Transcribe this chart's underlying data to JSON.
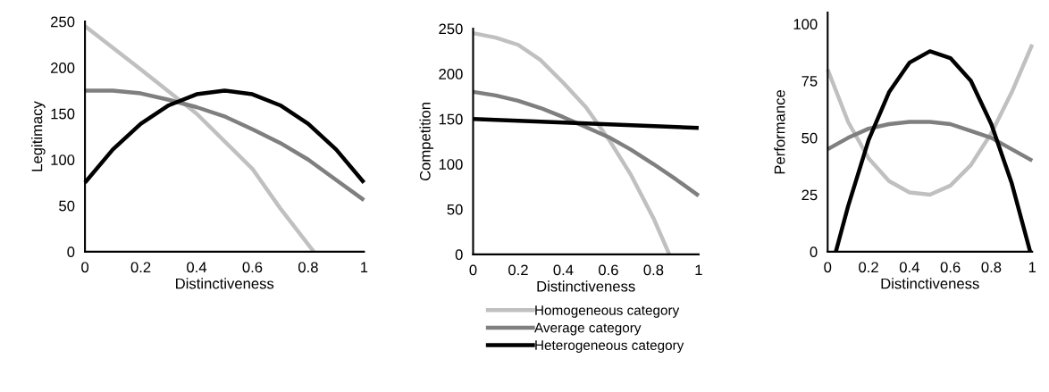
{
  "chart_data": [
    {
      "type": "line",
      "xlabel": "Distinctiveness",
      "ylabel": "Legitimacy",
      "xlim": [
        0,
        1
      ],
      "ylim": [
        0,
        250
      ],
      "xticks": [
        0,
        0.2,
        0.4,
        0.6,
        0.8,
        1
      ],
      "yticks": [
        0,
        50,
        100,
        150,
        200,
        250
      ],
      "grid": false,
      "marker": "none",
      "line_style": "solid",
      "series": [
        {
          "color": "#c0c0c0",
          "x": [
            0,
            0.2,
            0.4,
            0.6,
            0.7,
            0.82
          ],
          "values": [
            245,
            198,
            150,
            90,
            47,
            0
          ]
        },
        {
          "color": "#7f7f7f",
          "x": [
            0,
            0.1,
            0.2,
            0.3,
            0.4,
            0.5,
            0.6,
            0.7,
            0.8,
            0.9,
            1
          ],
          "values": [
            175,
            175,
            172,
            165,
            157,
            147,
            133,
            118,
            100,
            78,
            56
          ]
        },
        {
          "color": "#000000",
          "x": [
            0,
            0.1,
            0.2,
            0.3,
            0.4,
            0.5,
            0.6,
            0.7,
            0.8,
            0.9,
            1
          ],
          "values": [
            75,
            111,
            139,
            159,
            171,
            175,
            171,
            159,
            139,
            111,
            75
          ]
        }
      ]
    },
    {
      "type": "line",
      "xlabel": "Distinctiveness",
      "ylabel": "Competition",
      "xlim": [
        0,
        1
      ],
      "ylim": [
        0,
        250
      ],
      "xticks": [
        0,
        0.2,
        0.4,
        0.6,
        0.8,
        1
      ],
      "yticks": [
        0,
        50,
        100,
        150,
        200,
        250
      ],
      "grid": false,
      "marker": "none",
      "line_style": "solid",
      "legend": "bottom",
      "series": [
        {
          "name": "Homogeneous category",
          "color": "#c0c0c0",
          "x": [
            0,
            0.1,
            0.2,
            0.3,
            0.4,
            0.5,
            0.6,
            0.7,
            0.8,
            0.87
          ],
          "values": [
            245,
            240,
            232,
            215,
            190,
            163,
            128,
            88,
            40,
            0
          ]
        },
        {
          "name": "Average category",
          "color": "#7f7f7f",
          "x": [
            0,
            0.1,
            0.2,
            0.3,
            0.4,
            0.5,
            0.6,
            0.7,
            0.8,
            0.9,
            1
          ],
          "values": [
            180,
            176,
            170,
            162,
            152,
            141,
            130,
            116,
            100,
            83,
            65
          ]
        },
        {
          "name": "Heterogeneous category",
          "color": "#000000",
          "x": [
            0,
            1
          ],
          "values": [
            150,
            140
          ]
        }
      ]
    },
    {
      "type": "line",
      "xlabel": "Distinctiveness",
      "ylabel": "Performance",
      "xlim": [
        0,
        1
      ],
      "ylim": [
        0,
        105
      ],
      "xticks": [
        0,
        0.2,
        0.4,
        0.6,
        0.8,
        1
      ],
      "yticks": [
        0,
        25,
        50,
        75,
        100
      ],
      "grid": false,
      "marker": "none",
      "line_style": "solid",
      "series": [
        {
          "color": "#c0c0c0",
          "x": [
            0,
            0.1,
            0.2,
            0.3,
            0.4,
            0.5,
            0.6,
            0.7,
            0.8,
            0.9,
            1
          ],
          "values": [
            80,
            57,
            41,
            31,
            26,
            25,
            29,
            38,
            52,
            70,
            91
          ]
        },
        {
          "color": "#7f7f7f",
          "x": [
            0,
            0.1,
            0.2,
            0.3,
            0.4,
            0.5,
            0.6,
            0.7,
            0.8,
            0.9,
            1
          ],
          "values": [
            45,
            50,
            54,
            56,
            57,
            57,
            56,
            53,
            50,
            45,
            40
          ]
        },
        {
          "color": "#000000",
          "x": [
            0.04,
            0.1,
            0.2,
            0.3,
            0.4,
            0.5,
            0.6,
            0.7,
            0.8,
            0.9,
            0.99
          ],
          "values": [
            0,
            20,
            49,
            70,
            83,
            88,
            85,
            75,
            56,
            30,
            0
          ]
        }
      ]
    }
  ]
}
